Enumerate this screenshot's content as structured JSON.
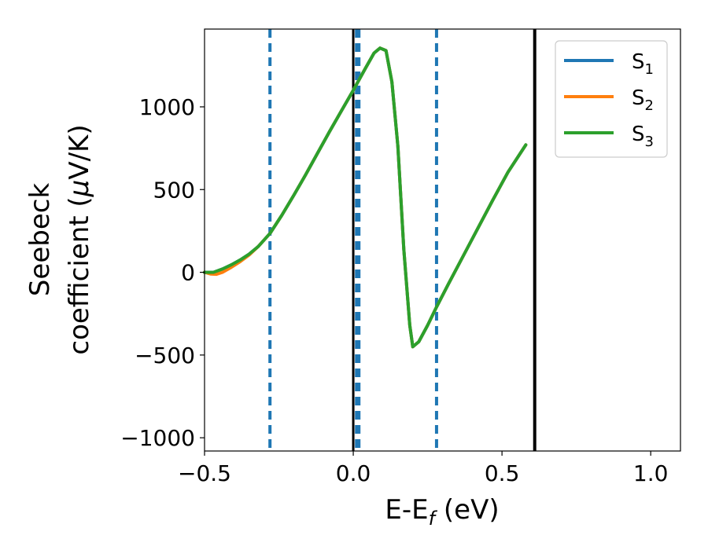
{
  "chart_data": {
    "type": "line",
    "xlabel": {
      "main": "E-E",
      "sub": "f",
      "suffix": " (eV)"
    },
    "ylabel": {
      "line1": "Seebeck",
      "line2_prefix": "coefficient  (",
      "mu": "μ",
      "line2_suffix": "V/K)"
    },
    "xlim": [
      -0.5,
      1.1
    ],
    "ylim": [
      -1080,
      1470
    ],
    "xticks": [
      -0.5,
      0.0,
      0.5,
      1.0
    ],
    "xtick_labels": [
      "−0.5",
      "0.0",
      "0.5",
      "1.0"
    ],
    "yticks": [
      -1000,
      -500,
      0,
      500,
      1000
    ],
    "ytick_labels": [
      "−1000",
      "−500",
      "0",
      "500",
      "1000"
    ],
    "grid": false,
    "legend_position": "top-right",
    "series": [
      {
        "name": "S",
        "subscript": "1",
        "color": "#1f77b4",
        "x": [
          -0.5,
          -0.47,
          -0.44,
          -0.41,
          -0.38,
          -0.35,
          -0.32,
          -0.28,
          -0.24,
          -0.2,
          -0.16,
          -0.12,
          -0.08,
          -0.04,
          0.0,
          0.04,
          0.07,
          0.09,
          0.11,
          0.13,
          0.15,
          0.17,
          0.19,
          0.2,
          0.22,
          0.25,
          0.28,
          0.32,
          0.37,
          0.42,
          0.47,
          0.52,
          0.58
        ],
        "y": [
          0,
          0,
          20,
          45,
          75,
          110,
          155,
          235,
          345,
          465,
          590,
          720,
          850,
          975,
          1100,
          1230,
          1325,
          1355,
          1340,
          1150,
          760,
          140,
          -320,
          -450,
          -420,
          -320,
          -210,
          -70,
          100,
          270,
          440,
          605,
          770
        ]
      },
      {
        "name": "S",
        "subscript": "2",
        "color": "#ff7f0e",
        "x": [
          -0.5,
          -0.48,
          -0.46,
          -0.44,
          -0.41,
          -0.38,
          -0.35,
          -0.32,
          -0.28,
          -0.24,
          -0.2,
          -0.16,
          -0.12,
          -0.08,
          -0.04,
          0.0,
          0.04,
          0.07,
          0.09,
          0.11,
          0.13,
          0.15,
          0.17,
          0.19,
          0.2,
          0.22,
          0.25,
          0.28,
          0.32,
          0.37,
          0.42,
          0.47,
          0.52,
          0.58
        ],
        "y": [
          0,
          -10,
          -12,
          0,
          30,
          65,
          105,
          155,
          235,
          345,
          465,
          590,
          720,
          850,
          975,
          1100,
          1230,
          1325,
          1355,
          1340,
          1150,
          760,
          140,
          -320,
          -450,
          -420,
          -320,
          -210,
          -70,
          100,
          270,
          440,
          605,
          770
        ]
      },
      {
        "name": "S",
        "subscript": "3",
        "color": "#2ca02c",
        "x": [
          -0.5,
          -0.47,
          -0.44,
          -0.41,
          -0.38,
          -0.35,
          -0.32,
          -0.28,
          -0.24,
          -0.2,
          -0.16,
          -0.12,
          -0.08,
          -0.04,
          0.0,
          0.04,
          0.07,
          0.09,
          0.11,
          0.13,
          0.15,
          0.17,
          0.19,
          0.2,
          0.22,
          0.25,
          0.28,
          0.32,
          0.37,
          0.42,
          0.47,
          0.52,
          0.58
        ],
        "y": [
          0,
          0,
          20,
          45,
          75,
          110,
          155,
          235,
          345,
          465,
          590,
          720,
          850,
          975,
          1100,
          1230,
          1325,
          1355,
          1340,
          1150,
          760,
          140,
          -320,
          -450,
          -420,
          -320,
          -210,
          -70,
          100,
          270,
          440,
          605,
          770
        ]
      }
    ],
    "vlines": [
      {
        "x": -0.28,
        "color": "#1f77b4",
        "style": "dashed",
        "width": 4
      },
      {
        "x": 0.28,
        "color": "#1f77b4",
        "style": "dashed",
        "width": 4
      },
      {
        "x": 0.015,
        "color": "#1f77b4",
        "style": "dashed",
        "width": 7
      },
      {
        "x": 0.0,
        "color": "#000000",
        "style": "solid",
        "width": 3
      },
      {
        "x": 0.61,
        "color": "#000000",
        "style": "solid",
        "width": 4
      }
    ]
  }
}
